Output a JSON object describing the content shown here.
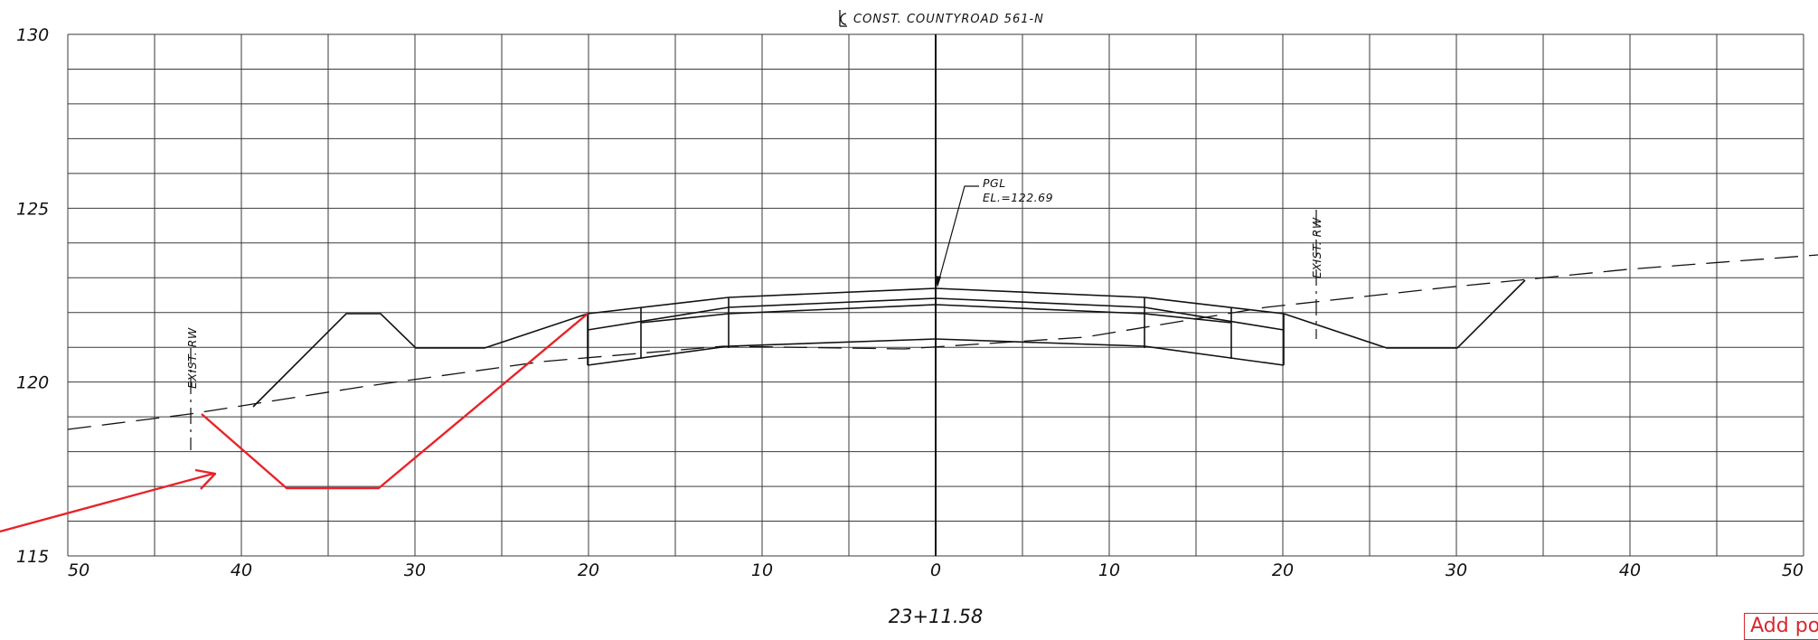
{
  "drawing": {
    "title": "CONST. COUNTYROAD 561-N",
    "centerline_symbol": "centerline-symbol",
    "station": "23+11.58",
    "pgl_label": "PGL",
    "pgl_elevation": "EL.=122.69",
    "exist_rw_left": "EXIST. RW",
    "exist_rw_right": "EXIST. RW"
  },
  "axes": {
    "x_range": [
      -50,
      50
    ],
    "y_range": [
      115,
      130
    ],
    "x_tick_labels": [
      "50",
      "40",
      "30",
      "20",
      "10",
      "0",
      "10",
      "20",
      "30",
      "40",
      "50"
    ],
    "y_tick_labels": [
      "130",
      "125",
      "120",
      "115"
    ]
  },
  "toolbar": {
    "add_point_label": "Add point"
  },
  "colors": {
    "grid": "#3a3a3a",
    "linework": "#111111",
    "annotation": "#e8232a"
  }
}
